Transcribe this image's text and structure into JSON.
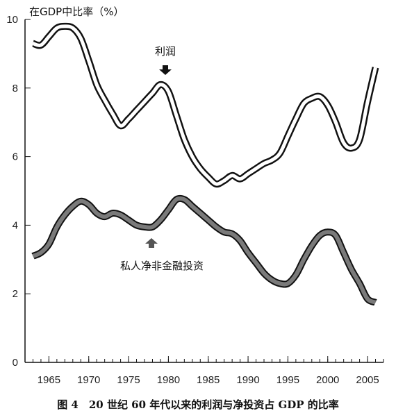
{
  "chart_data": {
    "type": "line",
    "title": "",
    "ylabel": "在GDP中比率（%）",
    "xlabel": "",
    "xlim": [
      1962,
      2007
    ],
    "ylim": [
      0,
      10
    ],
    "x_ticks": [
      "1965",
      "1970",
      "1975",
      "1980",
      "1985",
      "1990",
      "1995",
      "2000",
      "2005"
    ],
    "y_ticks": [
      "0",
      "2",
      "4",
      "6",
      "8",
      "10"
    ],
    "grid": false,
    "legend": "none",
    "colors": {
      "profit": "#ffffff",
      "profit_outline": "#111111",
      "investment": "#7a7a7a",
      "investment_outline": "#111111"
    },
    "series": [
      {
        "name": "利润",
        "x": [
          1963,
          1964,
          1965,
          1966,
          1967,
          1968,
          1969,
          1970,
          1971,
          1972,
          1973,
          1974,
          1975,
          1976,
          1977,
          1978,
          1979,
          1980,
          1981,
          1982,
          1983,
          1984,
          1985,
          1986,
          1987,
          1988,
          1989,
          1990,
          1991,
          1992,
          1993,
          1994,
          1995,
          1996,
          1997,
          1998,
          1999,
          2000,
          2001,
          2002,
          2003,
          2004,
          2005,
          2006
        ],
        "values": [
          9.3,
          9.25,
          9.5,
          9.75,
          9.8,
          9.75,
          9.45,
          8.8,
          8.1,
          7.65,
          7.25,
          6.9,
          7.1,
          7.35,
          7.6,
          7.85,
          8.1,
          7.9,
          7.2,
          6.5,
          6.0,
          5.65,
          5.4,
          5.2,
          5.3,
          5.45,
          5.35,
          5.5,
          5.65,
          5.8,
          5.9,
          6.1,
          6.6,
          7.1,
          7.55,
          7.7,
          7.75,
          7.5,
          7.0,
          6.4,
          6.25,
          6.5,
          7.6,
          8.6
        ]
      },
      {
        "name": "私人净非金融投资",
        "x": [
          1963,
          1964,
          1965,
          1966,
          1967,
          1968,
          1969,
          1970,
          1971,
          1972,
          1973,
          1974,
          1975,
          1976,
          1977,
          1978,
          1979,
          1980,
          1981,
          1982,
          1983,
          1984,
          1985,
          1986,
          1987,
          1988,
          1989,
          1990,
          1991,
          1992,
          1993,
          1994,
          1995,
          1996,
          1997,
          1998,
          1999,
          2000,
          2001,
          2002,
          2003,
          2004,
          2005,
          2006
        ],
        "values": [
          3.1,
          3.2,
          3.45,
          3.95,
          4.3,
          4.55,
          4.7,
          4.6,
          4.35,
          4.25,
          4.35,
          4.3,
          4.15,
          4.0,
          3.95,
          3.95,
          4.15,
          4.45,
          4.75,
          4.75,
          4.55,
          4.35,
          4.15,
          3.95,
          3.8,
          3.75,
          3.55,
          3.2,
          2.9,
          2.6,
          2.4,
          2.3,
          2.3,
          2.55,
          3.0,
          3.4,
          3.7,
          3.8,
          3.7,
          3.2,
          2.7,
          2.3,
          1.85,
          1.75
        ]
      }
    ],
    "annotations": {
      "profit_label": "利润",
      "investment_label": "私人净非金融投资"
    }
  },
  "caption": "图 4　20 世纪 60 年代以来的利润与净投资占 GDP 的比率"
}
